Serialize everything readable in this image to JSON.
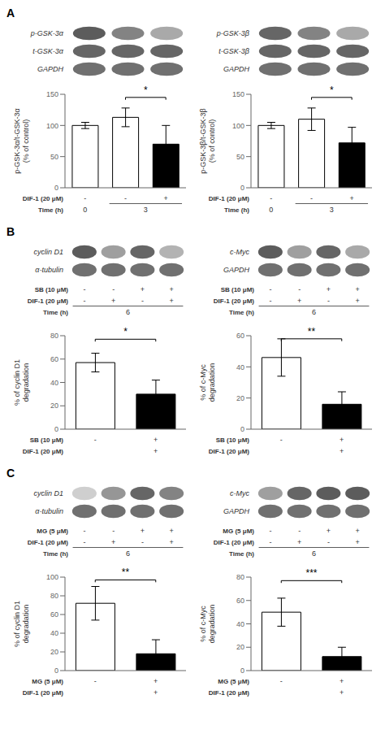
{
  "chart_data": [
    {
      "type": "blot",
      "panel": "A",
      "rows": [
        "p-GSK-3α",
        "t-GSK-3α",
        "GAPDH"
      ],
      "values": [
        [
          0.85,
          0.65,
          0.45
        ],
        [
          0.8,
          0.8,
          0.8
        ],
        [
          0.75,
          0.75,
          0.75
        ]
      ],
      "tick_labels": "y"
    },
    {
      "type": "blot",
      "panel": "A",
      "rows": [
        "p-GSK-3β",
        "t-GSK-3β",
        "GAPDH"
      ],
      "values": [
        [
          0.8,
          0.65,
          0.45
        ],
        [
          0.8,
          0.8,
          0.8
        ],
        [
          0.75,
          0.75,
          0.75
        ]
      ],
      "tick_labels": "y"
    },
    {
      "type": "bar",
      "panel": "A",
      "categories": [
        "-",
        "-",
        "+"
      ],
      "xlabel": "DIF-1 (20 μM)",
      "x_groups": {
        "label": "Time (h)",
        "groups": [
          {
            "text": "0",
            "size": 1
          },
          {
            "text": "3",
            "size": 2
          }
        ]
      },
      "values": [
        100,
        113,
        70
      ],
      "errors": [
        5,
        15,
        30
      ],
      "colors": [
        "white",
        "white",
        "black"
      ],
      "ylabel": "p-GSK-3α/t-GSK-3α\n(% of control)",
      "ylim": [
        0,
        150
      ],
      "yticks": [
        0,
        50,
        100,
        150
      ],
      "annotations": [
        {
          "text": "*",
          "between": [
            1,
            2
          ],
          "y": 145
        }
      ]
    },
    {
      "type": "bar",
      "panel": "A",
      "categories": [
        "-",
        "-",
        "+"
      ],
      "xlabel": "DIF-1 (20 μM)",
      "x_groups": {
        "label": "Time (h)",
        "groups": [
          {
            "text": "0",
            "size": 1
          },
          {
            "text": "3",
            "size": 2
          }
        ]
      },
      "values": [
        100,
        110,
        72
      ],
      "errors": [
        5,
        18,
        25
      ],
      "colors": [
        "white",
        "white",
        "black"
      ],
      "ylabel": "p-GSK-3β/t-GSK-3β\n(% of control)",
      "ylim": [
        0,
        150
      ],
      "yticks": [
        0,
        50,
        100,
        150
      ],
      "annotations": [
        {
          "text": "*",
          "between": [
            1,
            2
          ],
          "y": 145
        }
      ]
    },
    {
      "type": "blot",
      "panel": "B",
      "rows": [
        "cyclin D1",
        "α-tubulin"
      ],
      "values": [
        [
          0.85,
          0.5,
          0.8,
          0.4
        ],
        [
          0.75,
          0.75,
          0.75,
          0.75
        ]
      ],
      "lane_rows": [
        {
          "label": "SB (10 μM)",
          "values": [
            "-",
            "-",
            "+",
            "+"
          ]
        },
        {
          "label": "DIF-1 (20 μM)",
          "values": [
            "-",
            "+",
            "-",
            "+"
          ]
        }
      ],
      "lane_groups": {
        "label": "Time (h)",
        "groups": [
          {
            "text": "6",
            "size": 4
          }
        ]
      }
    },
    {
      "type": "blot",
      "panel": "B",
      "rows": [
        "c-Myc",
        "GAPDH"
      ],
      "values": [
        [
          0.85,
          0.5,
          0.8,
          0.45
        ],
        [
          0.75,
          0.75,
          0.75,
          0.75
        ]
      ],
      "lane_rows": [
        {
          "label": "SB (10 μM)",
          "values": [
            "-",
            "-",
            "+",
            "+"
          ]
        },
        {
          "label": "DIF-1 (20 μM)",
          "values": [
            "-",
            "+",
            "-",
            "+"
          ]
        }
      ],
      "lane_groups": {
        "label": "Time (h)",
        "groups": [
          {
            "text": "6",
            "size": 4
          }
        ]
      }
    },
    {
      "type": "bar",
      "panel": "B",
      "categories": [
        "-",
        "+"
      ],
      "xlabel": "SB (10 μM)",
      "x_groups": {
        "label": "DIF-1 (20 μM)",
        "groups": [
          {
            "text": null,
            "size": 1
          },
          {
            "text": "+",
            "size": 1
          }
        ]
      },
      "values": [
        57,
        30
      ],
      "errors": [
        8,
        12
      ],
      "colors": [
        "white",
        "black"
      ],
      "ylabel": "% of cyclin D1\ndegradation",
      "ylim": [
        0,
        80
      ],
      "yticks": [
        0,
        20,
        40,
        60,
        80
      ],
      "annotations": [
        {
          "text": "*",
          "between": [
            0,
            1
          ],
          "y": 77
        }
      ]
    },
    {
      "type": "bar",
      "panel": "B",
      "categories": [
        "-",
        "+"
      ],
      "xlabel": "SB (10 μM)",
      "x_groups": {
        "label": "DIF-1 (20 μM)",
        "groups": [
          {
            "text": null,
            "size": 1
          },
          {
            "text": "+",
            "size": 1
          }
        ]
      },
      "values": [
        46,
        16
      ],
      "errors": [
        12,
        8
      ],
      "colors": [
        "white",
        "black"
      ],
      "ylabel": "% of c-Myc\ndegradation",
      "ylim": [
        0,
        60
      ],
      "yticks": [
        0,
        20,
        40,
        60
      ],
      "annotations": [
        {
          "text": "**",
          "between": [
            0,
            1
          ],
          "y": 58
        }
      ]
    },
    {
      "type": "blot",
      "panel": "C",
      "rows": [
        "cyclin D1",
        "α-tubulin"
      ],
      "values": [
        [
          0.25,
          0.55,
          0.8,
          0.65
        ],
        [
          0.75,
          0.75,
          0.75,
          0.75
        ]
      ],
      "lane_rows": [
        {
          "label": "MG (5 μM)",
          "values": [
            "-",
            "-",
            "+",
            "+"
          ]
        },
        {
          "label": "DIF-1 (20 μM)",
          "values": [
            "-",
            "+",
            "-",
            "+"
          ]
        }
      ],
      "lane_groups": {
        "label": "Time (h)",
        "groups": [
          {
            "text": "6",
            "size": 4
          }
        ]
      }
    },
    {
      "type": "blot",
      "panel": "C",
      "rows": [
        "c-Myc",
        "GAPDH"
      ],
      "values": [
        [
          0.5,
          0.8,
          0.85,
          0.85
        ],
        [
          0.75,
          0.75,
          0.75,
          0.75
        ]
      ],
      "lane_rows": [
        {
          "label": "MG (5 μM)",
          "values": [
            "-",
            "-",
            "+",
            "+"
          ]
        },
        {
          "label": "DIF-1 (20 μM)",
          "values": [
            "-",
            "+",
            "-",
            "+"
          ]
        }
      ],
      "lane_groups": {
        "label": "Time (h)",
        "groups": [
          {
            "text": "6",
            "size": 4
          }
        ]
      }
    },
    {
      "type": "bar",
      "panel": "C",
      "categories": [
        "-",
        "+"
      ],
      "xlabel": "MG (5 μM)",
      "x_groups": {
        "label": "DIF-1 (20 μM)",
        "groups": [
          {
            "text": null,
            "size": 1
          },
          {
            "text": "+",
            "size": 1
          }
        ]
      },
      "values": [
        72,
        18
      ],
      "errors": [
        18,
        15
      ],
      "colors": [
        "white",
        "black"
      ],
      "ylabel": "% of cyclin D1\ndegradation",
      "ylim": [
        0,
        100
      ],
      "yticks": [
        0,
        20,
        40,
        60,
        80,
        100
      ],
      "annotations": [
        {
          "text": "**",
          "between": [
            0,
            1
          ],
          "y": 97
        }
      ]
    },
    {
      "type": "bar",
      "panel": "C",
      "categories": [
        "-",
        "+"
      ],
      "xlabel": "MG (5 μM)",
      "x_groups": {
        "label": "DIF-1 (20 μM)",
        "groups": [
          {
            "text": null,
            "size": 1
          },
          {
            "text": "+",
            "size": 1
          }
        ]
      },
      "values": [
        50,
        12
      ],
      "errors": [
        12,
        8
      ],
      "colors": [
        "white",
        "black"
      ],
      "ylabel": "% of c-Myc\ndegradation",
      "ylim": [
        0,
        80
      ],
      "yticks": [
        0,
        20,
        40,
        60,
        80
      ],
      "annotations": [
        {
          "text": "***",
          "between": [
            0,
            1
          ],
          "y": 77
        }
      ]
    }
  ]
}
